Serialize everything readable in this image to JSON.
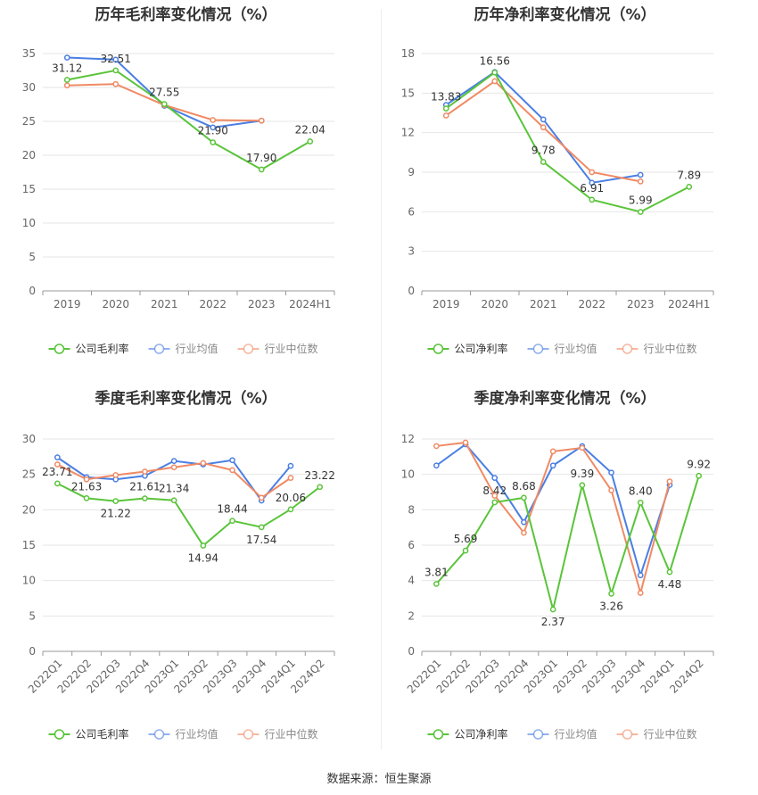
{
  "colors": {
    "company": "#5ac43a",
    "avg": "#4a7fe3",
    "median": "#f08a64",
    "grid": "#e6e6e6",
    "axis": "#999999"
  },
  "source_text": "数据来源：恒生聚源",
  "chart_data": [
    {
      "type": "line",
      "title": "历年毛利率变化情况（%）",
      "categories": [
        "2019",
        "2020",
        "2021",
        "2022",
        "2023",
        "2024H1"
      ],
      "ylim": [
        0,
        35
      ],
      "yticks": [
        0,
        5,
        10,
        15,
        20,
        25,
        30,
        35
      ],
      "rotate_labels": false,
      "label_series": 0,
      "series": [
        {
          "name": "公司毛利率",
          "color": "#5ac43a",
          "values": [
            31.12,
            32.51,
            27.55,
            21.9,
            17.9,
            22.04
          ]
        },
        {
          "name": "行业均值",
          "color": "#4a7fe3",
          "values": [
            34.4,
            34.1,
            27.3,
            24.1,
            25.1,
            null
          ]
        },
        {
          "name": "行业中位数",
          "color": "#f08a64",
          "values": [
            30.3,
            30.5,
            27.4,
            25.2,
            25.1,
            null
          ]
        }
      ],
      "labels": [
        "31.12",
        "32.51",
        "27.55",
        "21.90",
        "17.90",
        "22.04"
      ]
    },
    {
      "type": "line",
      "title": "历年净利率变化情况（%）",
      "categories": [
        "2019",
        "2020",
        "2021",
        "2022",
        "2023",
        "2024H1"
      ],
      "ylim": [
        0,
        18
      ],
      "yticks": [
        0,
        3,
        6,
        9,
        12,
        15,
        18
      ],
      "rotate_labels": false,
      "label_series": 0,
      "series": [
        {
          "name": "公司净利率",
          "color": "#5ac43a",
          "values": [
            13.83,
            16.56,
            9.78,
            6.91,
            5.99,
            7.89
          ]
        },
        {
          "name": "行业均值",
          "color": "#4a7fe3",
          "values": [
            14.1,
            16.6,
            13.0,
            8.2,
            8.8,
            null
          ]
        },
        {
          "name": "行业中位数",
          "color": "#f08a64",
          "values": [
            13.3,
            15.9,
            12.4,
            9.0,
            8.3,
            null
          ]
        }
      ],
      "labels": [
        "13.83",
        "16.56",
        "9.78",
        "6.91",
        "5.99",
        "7.89"
      ]
    },
    {
      "type": "line",
      "title": "季度毛利率变化情况（%）",
      "categories": [
        "2022Q1",
        "2022Q2",
        "2022Q3",
        "2022Q4",
        "2023Q1",
        "2023Q2",
        "2023Q3",
        "2023Q4",
        "2024Q1",
        "2024Q2"
      ],
      "ylim": [
        0,
        30
      ],
      "yticks": [
        0,
        5,
        10,
        15,
        20,
        25,
        30
      ],
      "rotate_labels": true,
      "label_series": 0,
      "series": [
        {
          "name": "公司毛利率",
          "color": "#5ac43a",
          "values": [
            23.71,
            21.63,
            21.22,
            21.61,
            21.34,
            14.94,
            18.44,
            17.54,
            20.06,
            23.22
          ]
        },
        {
          "name": "行业均值",
          "color": "#4a7fe3",
          "values": [
            27.4,
            24.6,
            24.3,
            24.8,
            26.9,
            26.4,
            27.0,
            21.3,
            26.2,
            null
          ]
        },
        {
          "name": "行业中位数",
          "color": "#f08a64",
          "values": [
            26.4,
            24.3,
            24.9,
            25.4,
            26.0,
            26.6,
            25.6,
            21.7,
            24.5,
            null
          ]
        }
      ],
      "labels": [
        "23.71",
        "21.63",
        "21.22",
        "21.61",
        "21.34",
        "14.94",
        "18.44",
        "17.54",
        "20.06",
        "23.22"
      ]
    },
    {
      "type": "line",
      "title": "季度净利率变化情况（%）",
      "categories": [
        "2022Q1",
        "2022Q2",
        "2022Q3",
        "2022Q4",
        "2023Q1",
        "2023Q2",
        "2023Q3",
        "2023Q4",
        "2024Q1",
        "2024Q2"
      ],
      "ylim": [
        0,
        12
      ],
      "yticks": [
        0,
        2,
        4,
        6,
        8,
        10,
        12
      ],
      "rotate_labels": true,
      "label_series": 0,
      "series": [
        {
          "name": "公司净利率",
          "color": "#5ac43a",
          "values": [
            3.81,
            5.69,
            8.42,
            8.68,
            2.37,
            9.39,
            3.26,
            8.4,
            4.48,
            9.92
          ]
        },
        {
          "name": "行业均值",
          "color": "#4a7fe3",
          "values": [
            10.5,
            11.7,
            9.8,
            7.3,
            10.5,
            11.6,
            10.1,
            4.3,
            9.4,
            null
          ]
        },
        {
          "name": "行业中位数",
          "color": "#f08a64",
          "values": [
            11.6,
            11.8,
            8.8,
            6.7,
            11.3,
            11.5,
            9.1,
            3.3,
            9.6,
            null
          ]
        }
      ],
      "labels": [
        "3.81",
        "5.69",
        "8.42",
        "8.68",
        "2.37",
        "9.39",
        "3.26",
        "8.40",
        "4.48",
        "9.92"
      ]
    }
  ]
}
